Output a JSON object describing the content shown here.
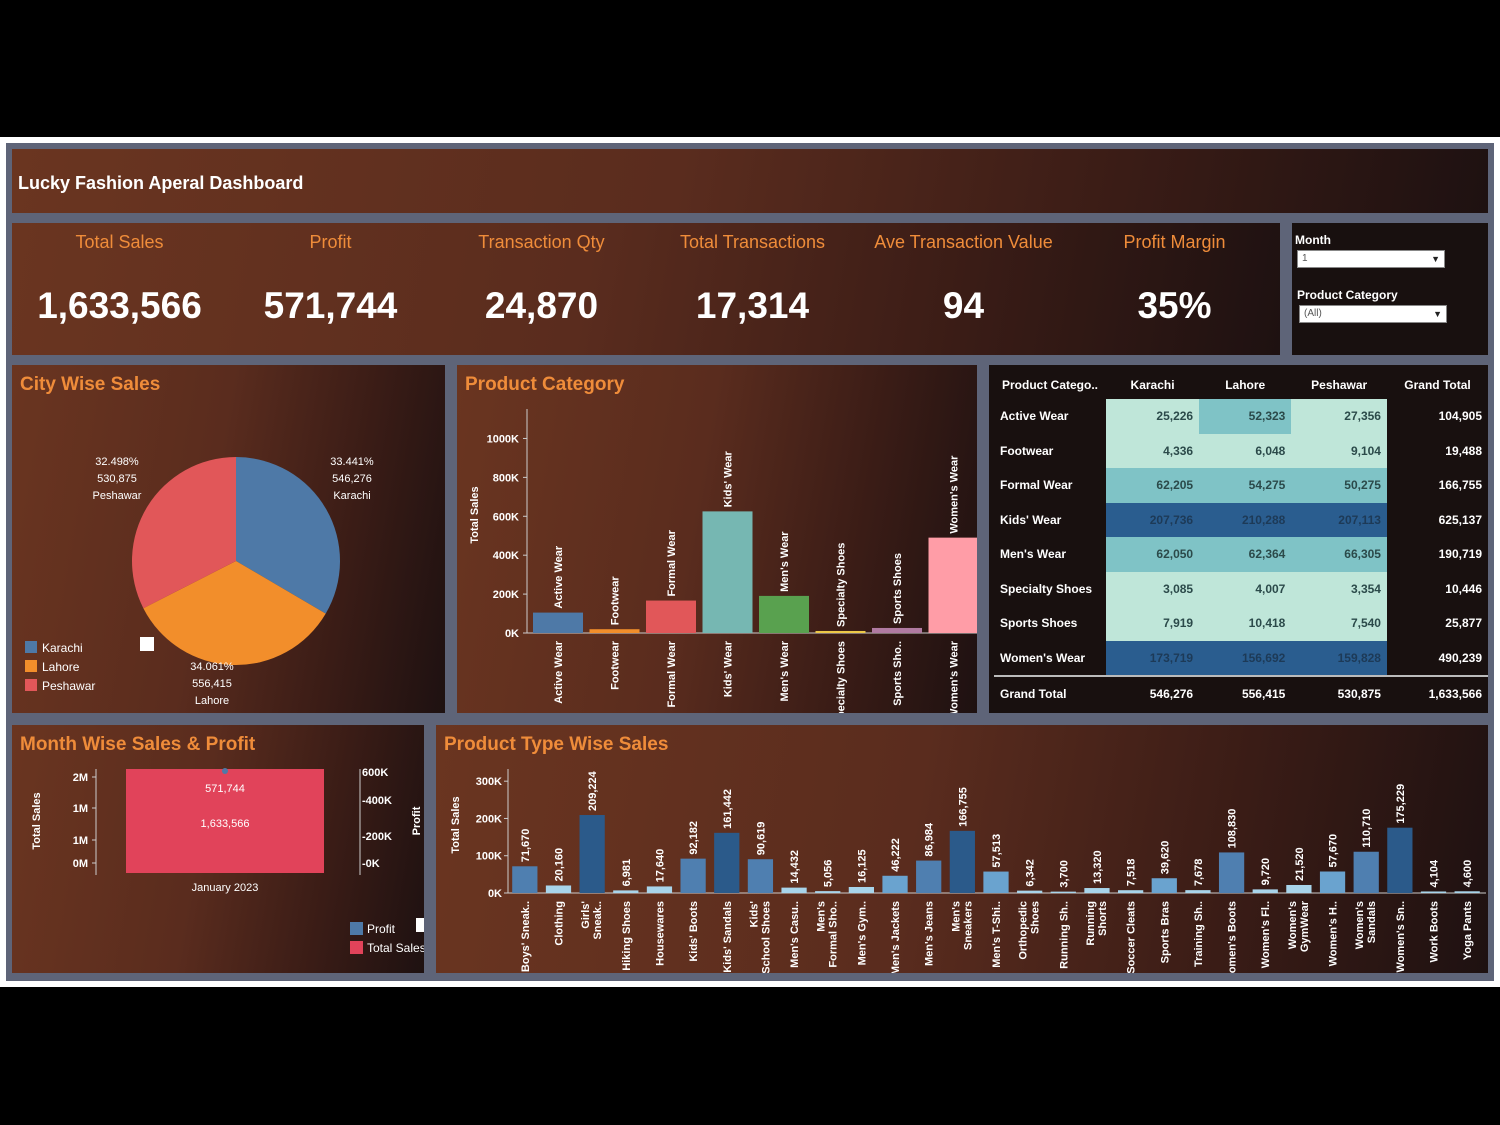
{
  "dashboard": {
    "title": "Lucky Fashion Aperal Dashboard"
  },
  "kpis": [
    {
      "label": "Total Sales",
      "value": "1,633,566"
    },
    {
      "label": "Profit",
      "value": "571,744"
    },
    {
      "label": "Transaction Qty",
      "value": "24,870"
    },
    {
      "label": "Total Transactions",
      "value": "17,314"
    },
    {
      "label": "Ave Transaction Value",
      "value": "94"
    },
    {
      "label": "Profit Margin",
      "value": "35%"
    }
  ],
  "filters": {
    "month_label": "Month",
    "month_value": "1",
    "category_label": "Product Category",
    "category_value": "(All)"
  },
  "colors": {
    "karachi": "#4e79a7",
    "lahore": "#f28e2b",
    "peshawar": "#e15759",
    "accent": "#ef8c3a"
  },
  "panel_titles": {
    "city": "City Wise Sales",
    "category": "Product Category",
    "month": "Month Wise Sales & Profit",
    "type": "Product Type Wise Sales"
  },
  "chart_data": [
    {
      "id": "city",
      "type": "pie",
      "title": "City Wise Sales",
      "slices": [
        {
          "label": "Karachi",
          "value": 546276,
          "percent": "33.441%",
          "value_label": "546,276",
          "color": "#4e79a7"
        },
        {
          "label": "Lahore",
          "value": 556415,
          "percent": "34.061%",
          "value_label": "556,415",
          "color": "#f28e2b"
        },
        {
          "label": "Peshawar",
          "value": 530875,
          "percent": "32.498%",
          "value_label": "530,875",
          "color": "#e15759"
        }
      ],
      "legend": [
        "Karachi",
        "Lahore",
        "Peshawar"
      ]
    },
    {
      "id": "category",
      "type": "bar",
      "title": "Product Category",
      "categories": [
        "Active Wear",
        "Footwear",
        "Formal Wear",
        "Kids' Wear",
        "Men's Wear",
        "Specialty Shoes",
        "Sports Shoes",
        "Women's Wear"
      ],
      "axis_categories": [
        "Active Wear",
        "Footwear",
        "Formal Wear",
        "Kids' Wear",
        "Men's Wear",
        "Specialty Shoes",
        "Sports Sho..",
        "Women's Wear"
      ],
      "values": [
        104905,
        19488,
        166755,
        625137,
        190719,
        10446,
        25877,
        490239
      ],
      "colors": [
        "#4e79a7",
        "#f28e2b",
        "#e15759",
        "#76b7b2",
        "#59a14f",
        "#edc948",
        "#b07aa1",
        "#ff9da7"
      ],
      "ylabel": "Total Sales",
      "yticks": [
        "0K",
        "200K",
        "400K",
        "600K",
        "800K",
        "1000K"
      ],
      "ylim": [
        0,
        1100000
      ]
    },
    {
      "id": "matrix",
      "type": "table",
      "columns": [
        "Product Catego..",
        "Karachi",
        "Lahore",
        "Peshawar",
        "Grand Total"
      ],
      "rows": [
        {
          "label": "Active Wear",
          "cells": [
            "25,226",
            "52,323",
            "27,356"
          ],
          "total": "104,905"
        },
        {
          "label": "Footwear",
          "cells": [
            "4,336",
            "6,048",
            "9,104"
          ],
          "total": "19,488"
        },
        {
          "label": "Formal Wear",
          "cells": [
            "62,205",
            "54,275",
            "50,275"
          ],
          "total": "166,755"
        },
        {
          "label": "Kids' Wear",
          "cells": [
            "207,736",
            "210,288",
            "207,113"
          ],
          "total": "625,137"
        },
        {
          "label": "Men's Wear",
          "cells": [
            "62,050",
            "62,364",
            "66,305"
          ],
          "total": "190,719"
        },
        {
          "label": "Specialty Shoes",
          "cells": [
            "3,085",
            "4,007",
            "3,354"
          ],
          "total": "10,446"
        },
        {
          "label": "Sports Shoes",
          "cells": [
            "7,919",
            "10,418",
            "7,540"
          ],
          "total": "25,877"
        },
        {
          "label": "Women's Wear",
          "cells": [
            "173,719",
            "156,692",
            "159,828"
          ],
          "total": "490,239"
        }
      ],
      "grand_total": {
        "label": "Grand Total",
        "cells": [
          "546,276",
          "556,415",
          "530,875"
        ],
        "total": "1,633,566"
      }
    },
    {
      "id": "month",
      "type": "bar",
      "title": "Month Wise Sales & Profit",
      "categories": [
        "January 2023"
      ],
      "series": [
        {
          "name": "Total Sales",
          "values": [
            1633566
          ],
          "value_label": "1,633,566",
          "color": "#e1435a"
        },
        {
          "name": "Profit",
          "values": [
            571744
          ],
          "value_label": "571,744",
          "color": "#4e79a7"
        }
      ],
      "ylabel": "Total Sales",
      "y2label": "Profit",
      "yticks": [
        "2M",
        "1M",
        "1M",
        "0M"
      ],
      "y2ticks": [
        "600K",
        "400K",
        "200K",
        "0K"
      ],
      "legend": [
        "Profit",
        "Total Sales"
      ]
    },
    {
      "id": "type",
      "type": "bar",
      "title": "Product Type Wise Sales",
      "categories": [
        "Boys' Sneak..",
        "Clothing",
        "Girls' Sneak..",
        "Hiking Shoes",
        "Housewares",
        "Kids' Boots",
        "Kids' Sandals",
        "Kids' School Shoes",
        "Men's Casu..",
        "Men's Formal Sho..",
        "Men's Gym..",
        "Men's Jackets",
        "Men's Jeans",
        "Men's Sneakers",
        "Men's T-Shi..",
        "Orthopedic Shoes",
        "Running Sh..",
        "Running Shorts",
        "Soccer Cleats",
        "Sports Bras",
        "Training Sh..",
        "Women's Boots",
        "Women's Fl..",
        "Women's GymWear",
        "Women's H..",
        "Women's Sandals",
        "Women's Sn..",
        "Work Boots",
        "Yoga Pants"
      ],
      "values": [
        71670,
        20160,
        209224,
        6981,
        17640,
        92182,
        161442,
        90619,
        14432,
        5056,
        16125,
        46222,
        86984,
        166755,
        57513,
        6342,
        3700,
        13320,
        7518,
        39620,
        7678,
        108830,
        9720,
        21520,
        57670,
        110710,
        175229,
        4104,
        4600
      ],
      "value_labels": [
        "71,670",
        "20,160",
        "209,224",
        "6,981",
        "17,640",
        "92,182",
        "161,442",
        "90,619",
        "14,432",
        "5,056",
        "16,125",
        "46,222",
        "86,984",
        "166,755",
        "57,513",
        "6,342",
        "3,700",
        "13,320",
        "7,518",
        "39,620",
        "7,678",
        "108,830",
        "9,720",
        "21,520",
        "57,670",
        "110,710",
        "175,229",
        "4,104",
        "4,600"
      ],
      "ylabel": "Total Sales",
      "yticks": [
        "0K",
        "100K",
        "200K",
        "300K"
      ],
      "ylim": [
        0,
        330000
      ]
    }
  ]
}
